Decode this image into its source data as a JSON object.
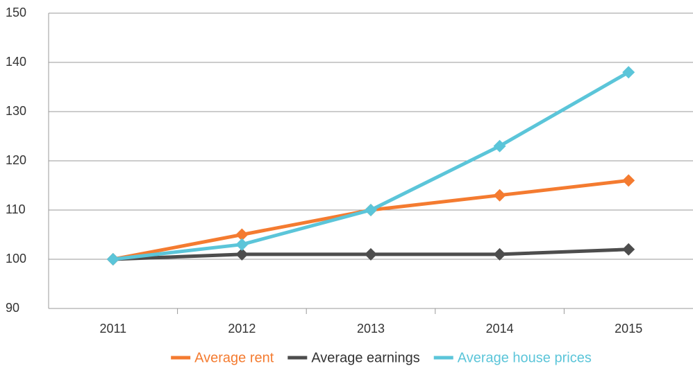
{
  "chart_data": {
    "type": "line",
    "categories": [
      "2011",
      "2012",
      "2013",
      "2014",
      "2015"
    ],
    "series": [
      {
        "name": "Average rent",
        "color": "#f47b30",
        "values": [
          100,
          105,
          110,
          113,
          116
        ]
      },
      {
        "name": "Average earnings",
        "color": "#4d4d4d",
        "values": [
          100,
          101,
          101,
          101,
          102
        ]
      },
      {
        "name": "Average house prices",
        "color": "#5bc5d9",
        "values": [
          100,
          103,
          110,
          123,
          138
        ]
      }
    ],
    "ylim": [
      90,
      150
    ],
    "yticks": [
      90,
      100,
      110,
      120,
      130,
      140,
      150
    ],
    "grid": true,
    "legend": "bottom"
  }
}
